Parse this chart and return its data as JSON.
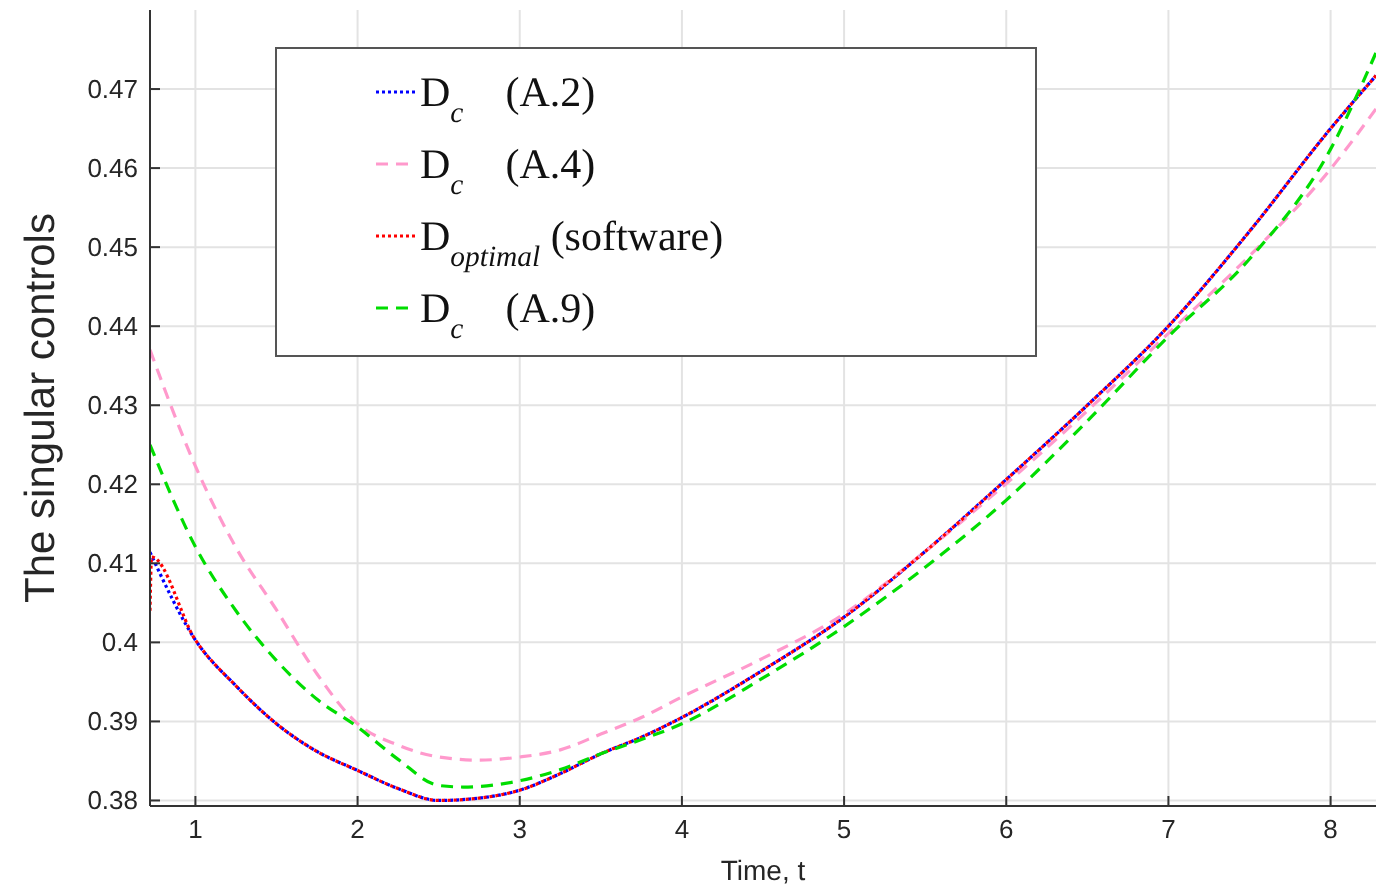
{
  "chart_data": {
    "type": "line",
    "xlabel": "Time, t",
    "ylabel": "The singular controls",
    "xlim": [
      0.72,
      8.28
    ],
    "ylim": [
      0.3793,
      0.48
    ],
    "xticks": [
      1,
      2,
      3,
      4,
      5,
      6,
      7,
      8
    ],
    "yticks": [
      0.38,
      0.39,
      0.4,
      0.41,
      0.42,
      0.43,
      0.44,
      0.45,
      0.46,
      0.47
    ],
    "grid": true,
    "legend": "top left",
    "series": [
      {
        "name": "D$_{c}$    (A.2)",
        "color": "#0000ff",
        "line_style": "dotted",
        "x": [
          0.72,
          1,
          1.25,
          1.5,
          1.75,
          2,
          2.25,
          2.5,
          2.75,
          3,
          3.25,
          3.5,
          3.75,
          4,
          4.5,
          5,
          5.5,
          6,
          6.5,
          7,
          7.5,
          8,
          8.28
        ],
        "values": [
          0.4114,
          0.4003,
          0.3945,
          0.3897,
          0.3862,
          0.3838,
          0.3815,
          0.38,
          0.3803,
          0.3813,
          0.3834,
          0.3859,
          0.388,
          0.3905,
          0.3965,
          0.4032,
          0.4115,
          0.4206,
          0.43,
          0.44,
          0.452,
          0.465,
          0.4717
        ]
      },
      {
        "name": "D$_{c}$    (A.4)",
        "color": "#ff99cc",
        "line_style": "dashed",
        "x": [
          0.72,
          1,
          1.25,
          1.5,
          1.75,
          2,
          2.25,
          2.5,
          2.75,
          3,
          3.25,
          3.5,
          3.75,
          4,
          4.5,
          5,
          5.5,
          6,
          6.5,
          7,
          7.5,
          8,
          8.28
        ],
        "values": [
          0.437,
          0.4223,
          0.412,
          0.4041,
          0.396,
          0.3897,
          0.387,
          0.3855,
          0.3851,
          0.3855,
          0.3864,
          0.3884,
          0.3905,
          0.3931,
          0.398,
          0.4036,
          0.4115,
          0.4201,
          0.4293,
          0.4391,
          0.4489,
          0.4599,
          0.4675
        ]
      },
      {
        "name": "D$_{optimal}$ (software)",
        "color": "#ff0000",
        "line_style": "dotted",
        "x": [
          0.72,
          0.73,
          1,
          1.25,
          1.5,
          1.75,
          2,
          2.25,
          2.5,
          2.75,
          3,
          3.25,
          3.5,
          3.75,
          4,
          4.5,
          5,
          5.5,
          6,
          6.5,
          7,
          7.5,
          8,
          8.28
        ],
        "values": [
          0.404,
          0.4108,
          0.4003,
          0.3945,
          0.3897,
          0.3862,
          0.3838,
          0.3815,
          0.38,
          0.3803,
          0.3813,
          0.3834,
          0.3859,
          0.388,
          0.3905,
          0.3965,
          0.4032,
          0.4115,
          0.4206,
          0.43,
          0.44,
          0.452,
          0.465,
          0.4717
        ]
      },
      {
        "name": "D$_{c}$    (A.9)",
        "color": "#00dd00",
        "line_style": "dashed",
        "x": [
          0.72,
          1,
          1.25,
          1.5,
          1.75,
          2,
          2.25,
          2.5,
          2.65,
          3,
          3.25,
          3.5,
          3.75,
          4,
          4.5,
          5,
          5.5,
          6,
          6.5,
          7,
          7.5,
          8,
          8.28
        ],
        "values": [
          0.425,
          0.4121,
          0.404,
          0.3977,
          0.3928,
          0.3893,
          0.3852,
          0.3819,
          0.3817,
          0.3825,
          0.3839,
          0.3859,
          0.3877,
          0.3897,
          0.3955,
          0.402,
          0.4095,
          0.418,
          0.428,
          0.4387,
          0.4485,
          0.4624,
          0.4746
        ]
      }
    ]
  }
}
